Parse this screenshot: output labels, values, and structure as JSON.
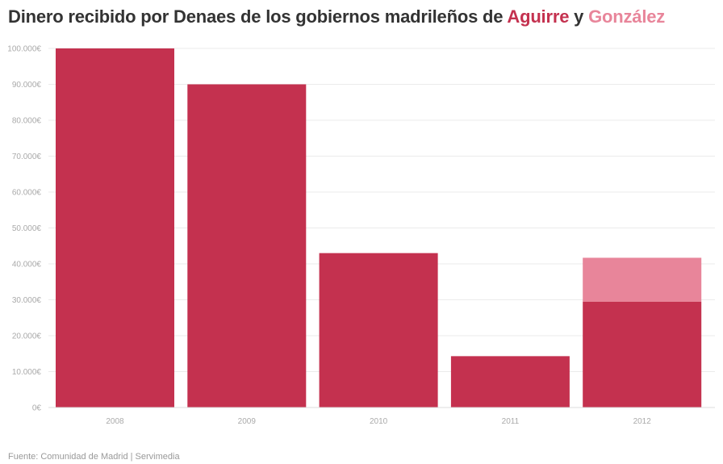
{
  "title": {
    "prefix": "Dinero recibido por Denaes de los gobiernos madrileños de ",
    "series_a": "Aguirre",
    "joiner": " y ",
    "series_b": "González"
  },
  "source": "Fuente: Comunidad de Madrid | Servimedia",
  "colors": {
    "aguirre": "#c4314f",
    "gonzalez": "#e8859a",
    "grid": "#ebebeb",
    "tick_text": "#aaaaaa",
    "title": "#333333"
  },
  "chart_data": {
    "type": "bar",
    "stacked": true,
    "title": "Dinero recibido por Denaes de los gobiernos madrileños de Aguirre y González",
    "categories": [
      "2008",
      "2009",
      "2010",
      "2011",
      "2012"
    ],
    "series": [
      {
        "name": "Aguirre",
        "values": [
          100000,
          90000,
          43000,
          14300,
          29500
        ]
      },
      {
        "name": "González",
        "values": [
          0,
          0,
          0,
          0,
          12200
        ]
      }
    ],
    "ylim": [
      0,
      100000
    ],
    "yticks": [
      0,
      10000,
      20000,
      30000,
      40000,
      50000,
      60000,
      70000,
      80000,
      90000,
      100000
    ],
    "ytick_labels": [
      "0€",
      "10.000€",
      "20.000€",
      "30.000€",
      "40.000€",
      "50.000€",
      "60.000€",
      "70.000€",
      "80.000€",
      "90.000€",
      "100.000€"
    ],
    "grid": true,
    "legend": "in-title"
  }
}
